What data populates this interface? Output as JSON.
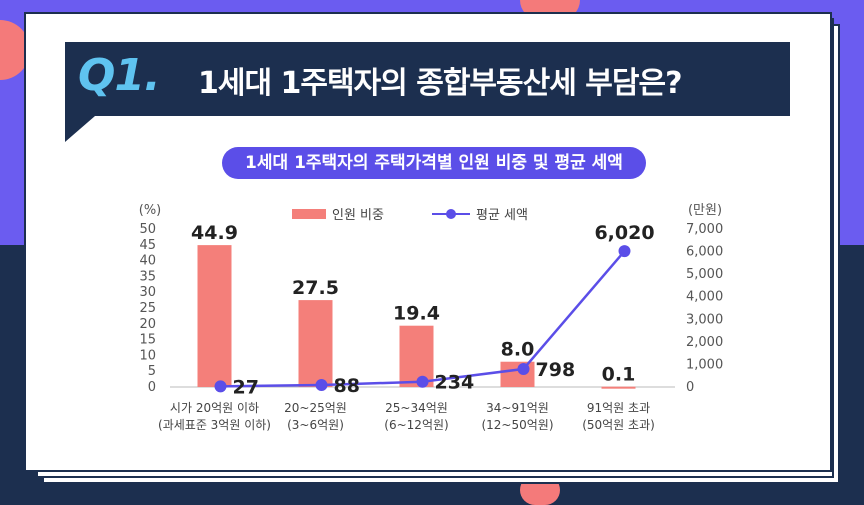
{
  "header": {
    "badge": "Q1.",
    "title": "1세대 1주택자의 종합부동산세 부담은?",
    "subtitle": "1세대 1주택자의 주택가격별 인원 비중 및 평균 세액"
  },
  "colors": {
    "bar": "#f47f7a",
    "line": "#5b4ee8",
    "banner": "#1c2f4f",
    "badge": "#5fc3f0"
  },
  "chart_data": {
    "type": "bar",
    "categories": [
      [
        "시가 20억원 이하",
        "(과세표준 3억원 이하)"
      ],
      [
        "20~25억원",
        "(3~6억원)"
      ],
      [
        "25~34억원",
        "(6~12억원)"
      ],
      [
        "34~91억원",
        "(12~50억원)"
      ],
      [
        "91억원 초과",
        "(50억원 초과)"
      ]
    ],
    "series": [
      {
        "name": "인원 비중",
        "type": "bar",
        "axis": "left",
        "values": [
          44.9,
          27.5,
          19.4,
          8.0,
          0.1
        ],
        "labels": [
          "44.9",
          "27.5",
          "19.4",
          "8.0",
          "0.1"
        ]
      },
      {
        "name": "평균 세액",
        "type": "line",
        "axis": "right",
        "values": [
          27,
          88,
          234,
          798,
          6020
        ],
        "labels": [
          "27",
          "88",
          "234",
          "798",
          "6,020"
        ]
      }
    ],
    "left_axis": {
      "unit": "(%)",
      "ylim": [
        0,
        50
      ],
      "ticks": [
        0,
        5,
        10,
        15,
        20,
        25,
        30,
        35,
        40,
        45,
        50
      ]
    },
    "right_axis": {
      "unit": "(만원)",
      "ylim": [
        0,
        7000
      ],
      "ticks": [
        0,
        1000,
        2000,
        3000,
        4000,
        5000,
        6000,
        7000
      ],
      "tick_labels": [
        "0",
        "1,000",
        "2,000",
        "3,000",
        "4,000",
        "5,000",
        "6,000",
        "7,000"
      ]
    },
    "legend": "top"
  }
}
